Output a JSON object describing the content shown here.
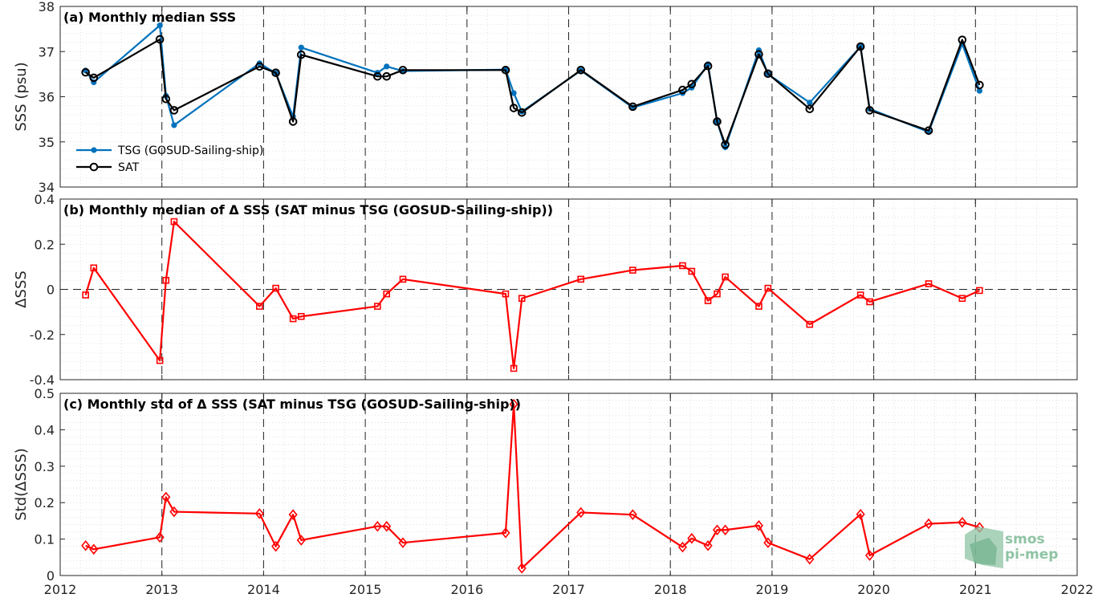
{
  "x_ticks": [
    "2012",
    "2013",
    "2014",
    "2015",
    "2016",
    "2017",
    "2018",
    "2019",
    "2020",
    "2021",
    "2022"
  ],
  "logo": {
    "line1": "smos",
    "line2": "pi-mep"
  },
  "colors": {
    "tsg": "#0072bd",
    "sat": "#000000",
    "delta": "#ff0000"
  },
  "chart_data": [
    {
      "type": "line",
      "title": "(a) Monthly median SSS",
      "ylabel": "SSS (psu)",
      "xlim": [
        2012,
        2022
      ],
      "ylim": [
        34,
        38
      ],
      "yticks": [
        "34",
        "35",
        "36",
        "37",
        "38"
      ],
      "grid": true,
      "legend_position": "bottom-left",
      "x": [
        2012.25,
        2012.33,
        2012.98,
        2013.04,
        2013.12,
        2013.96,
        2014.12,
        2014.29,
        2014.37,
        2015.12,
        2015.21,
        2015.37,
        2016.38,
        2016.46,
        2016.54,
        2017.12,
        2017.63,
        2018.12,
        2018.21,
        2018.37,
        2018.46,
        2018.54,
        2018.87,
        2018.96,
        2019.37,
        2019.87,
        2019.96,
        2020.54,
        2020.87,
        2021.04
      ],
      "series": [
        {
          "name": "TSG (GOSUD-Sailing-ship)",
          "marker": "dot",
          "values": [
            36.58,
            36.32,
            37.58,
            36.02,
            35.37,
            36.74,
            36.52,
            35.56,
            37.09,
            36.53,
            36.67,
            36.57,
            36.6,
            36.08,
            35.67,
            36.58,
            35.76,
            36.08,
            36.2,
            36.72,
            35.45,
            34.88,
            37.03,
            36.5,
            35.87,
            37.11,
            35.73,
            35.22,
            37.17,
            36.13
          ]
        },
        {
          "name": "SAT",
          "marker": "circle",
          "values": [
            36.54,
            36.42,
            37.27,
            35.95,
            35.7,
            36.67,
            36.53,
            35.45,
            36.93,
            36.45,
            36.45,
            36.59,
            36.59,
            35.75,
            35.65,
            36.59,
            35.78,
            36.15,
            36.28,
            36.68,
            35.45,
            34.94,
            36.94,
            36.51,
            35.73,
            37.11,
            35.7,
            35.25,
            37.26,
            36.26
          ]
        }
      ]
    },
    {
      "type": "line",
      "title": "(b) Monthly median of Δ SSS (SAT minus TSG (GOSUD-Sailing-ship))",
      "ylabel": "ΔSSS",
      "xlim": [
        2012,
        2022
      ],
      "ylim": [
        -0.4,
        0.4
      ],
      "yticks": [
        "-0.4",
        "-0.2",
        "0",
        "0.2",
        "0.4"
      ],
      "grid": true,
      "reference_line": 0,
      "x": [
        2012.25,
        2012.33,
        2012.98,
        2013.04,
        2013.12,
        2013.96,
        2014.12,
        2014.29,
        2014.37,
        2015.12,
        2015.21,
        2015.37,
        2016.38,
        2016.46,
        2016.54,
        2017.12,
        2017.63,
        2018.12,
        2018.21,
        2018.37,
        2018.46,
        2018.54,
        2018.87,
        2018.96,
        2019.37,
        2019.87,
        2019.96,
        2020.54,
        2020.87,
        2021.04
      ],
      "series": [
        {
          "name": "",
          "marker": "square",
          "values": [
            -0.025,
            0.095,
            -0.315,
            0.04,
            0.3,
            -0.075,
            0.005,
            -0.13,
            -0.12,
            -0.075,
            -0.02,
            0.045,
            -0.02,
            -0.35,
            -0.04,
            0.045,
            0.085,
            0.105,
            0.08,
            -0.05,
            -0.02,
            0.055,
            -0.075,
            0.005,
            -0.155,
            -0.025,
            -0.055,
            0.025,
            -0.04,
            -0.005
          ]
        }
      ]
    },
    {
      "type": "line",
      "title": "(c) Monthly std of Δ SSS (SAT minus TSG (GOSUD-Sailing-ship))",
      "ylabel": "Std(ΔSSS)",
      "xlim": [
        2012,
        2022
      ],
      "ylim": [
        0,
        0.5
      ],
      "yticks": [
        "0",
        "0.1",
        "0.2",
        "0.3",
        "0.4",
        "0.5"
      ],
      "grid": true,
      "x": [
        2012.25,
        2012.33,
        2012.98,
        2013.04,
        2013.12,
        2013.96,
        2014.12,
        2014.29,
        2014.37,
        2015.12,
        2015.21,
        2015.37,
        2016.38,
        2016.46,
        2016.54,
        2017.12,
        2017.63,
        2018.12,
        2018.21,
        2018.37,
        2018.46,
        2018.54,
        2018.87,
        2018.96,
        2019.37,
        2019.87,
        2019.96,
        2020.54,
        2020.87,
        2021.04
      ],
      "series": [
        {
          "name": "",
          "marker": "diamond",
          "values": [
            0.082,
            0.072,
            0.105,
            0.215,
            0.175,
            0.17,
            0.08,
            0.167,
            0.097,
            0.135,
            0.135,
            0.09,
            0.117,
            0.47,
            0.02,
            0.173,
            0.167,
            0.078,
            0.102,
            0.082,
            0.125,
            0.125,
            0.137,
            0.09,
            0.045,
            0.168,
            0.055,
            0.142,
            0.146,
            0.132
          ]
        }
      ]
    }
  ]
}
